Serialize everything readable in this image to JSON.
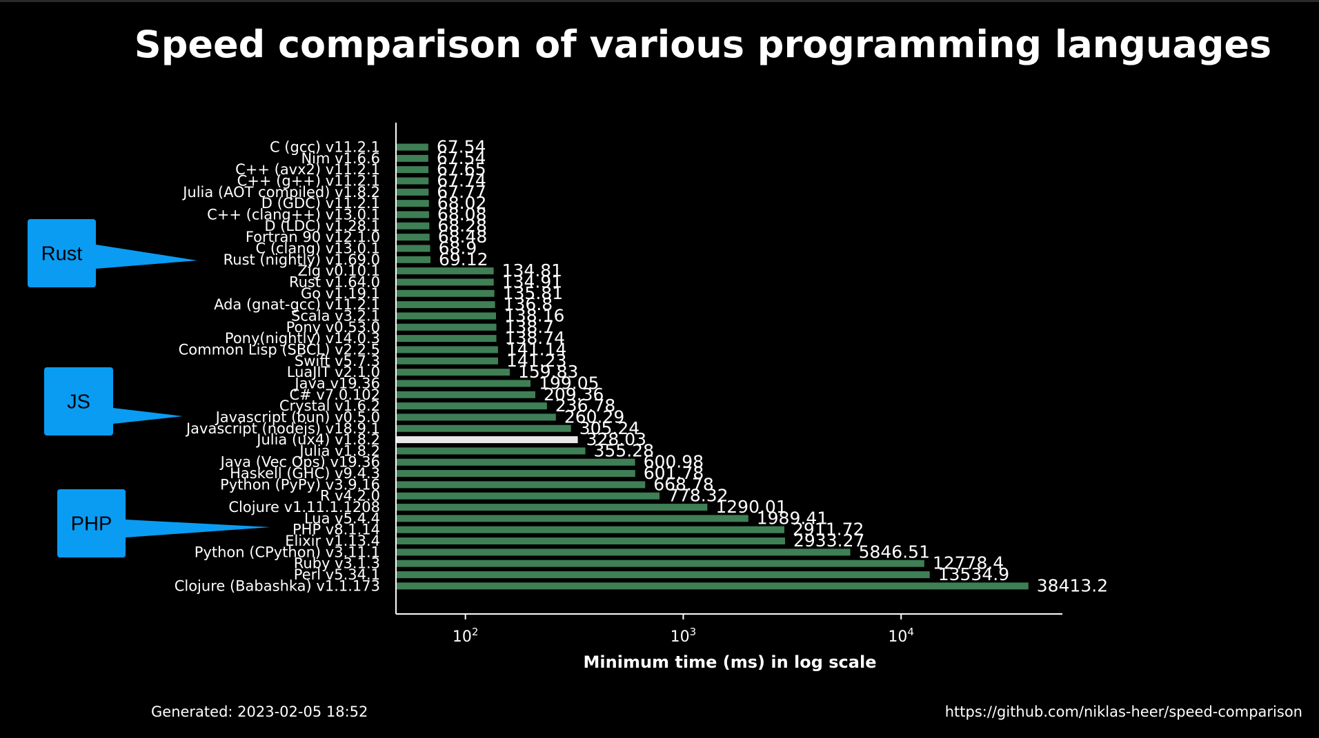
{
  "colors": {
    "background": "#000000",
    "bar": "#3f7f55",
    "highlight_bar": "#e8e8e8",
    "callout": "#0a9cf2",
    "text": "#ffffff"
  },
  "footer": {
    "generated": "Generated: 2023-02-05 18:52",
    "source": "https://github.com/niklas-heer/speed-comparison"
  },
  "callouts": [
    "Rust",
    "JS",
    "PHP"
  ],
  "chart_data": {
    "type": "bar",
    "orientation": "horizontal",
    "title": "Speed comparison of various programming languages",
    "xlabel": "Minimum time (ms) in log scale",
    "ylabel": "",
    "xscale": "log",
    "xlim": [
      48,
      55000
    ],
    "xticks": [
      {
        "value": 100,
        "base": "10",
        "exp": "2"
      },
      {
        "value": 1000,
        "base": "10",
        "exp": "3"
      },
      {
        "value": 10000,
        "base": "10",
        "exp": "4"
      }
    ],
    "grid": false,
    "highlighted_category": "Julia (ux4) v1.8.2",
    "categories": [
      "C (gcc) v11.2.1",
      "Nim v1.6.6",
      "C++ (avx2) v11.2.1",
      "C++ (g++) v11.2.1",
      "Julia (AOT compiled) v1.8.2",
      "D (GDC) v11.2.1",
      "C++ (clang++) v13.0.1",
      "D (LDC) v1.28.1",
      "Fortran 90 v12.1.0",
      "C (clang) v13.0.1",
      "Rust (nightly) v1.69.0",
      "Zig v0.10.1",
      "Rust v1.64.0",
      "Go v1.19.1",
      "Ada (gnat-gcc) v11.2.1",
      "Scala v3.2.1",
      "Pony v0.53.0",
      "Pony(nightly) v14.0.3",
      "Common Lisp (SBCL) v2.2.5",
      "Swift v5.7.3",
      "LuaJIT v2.1.0",
      "Java v19.36",
      "C# v7.0.102",
      "Crystal v1.6.2",
      "Javascript (bun) v0.5.0",
      "Javascript (nodejs) v18.9.1",
      "Julia (ux4) v1.8.2",
      "Julia v1.8.2",
      "Java (Vec Ops) v19.36",
      "Haskell (GHC) v9.4.3",
      "Python (PyPy) v3.9.16",
      "R v4.2.0",
      "Clojure v1.11.1.1208",
      "Lua v5.4.4",
      "PHP v8.1.14",
      "Elixir v1.13.4",
      "Python (CPython) v3.11.1",
      "Ruby v3.1.3",
      "Perl v5.34.1",
      "Clojure (Babashka) v1.1.173"
    ],
    "values": [
      67.54,
      67.54,
      67.65,
      67.74,
      67.77,
      68.02,
      68.08,
      68.28,
      68.48,
      68.9,
      69.12,
      134.81,
      134.91,
      135.81,
      136.8,
      138.16,
      138.7,
      138.74,
      141.14,
      141.23,
      159.83,
      199.05,
      209.36,
      236.78,
      260.29,
      305.24,
      328.03,
      355.28,
      600.98,
      601.78,
      668.78,
      778.32,
      1290.01,
      1989.41,
      2911.72,
      2933.27,
      5846.51,
      12778.4,
      13534.9,
      38413.2
    ],
    "value_labels": [
      "67.54",
      "67.54",
      "67.65",
      "67.74",
      "67.77",
      "68.02",
      "68.08",
      "68.28",
      "68.48",
      "68.9",
      "69.12",
      "134.81",
      "134.91",
      "135.81",
      "136.8",
      "138.16",
      "138.7",
      "138.74",
      "141.14",
      "141.23",
      "159.83",
      "199.05",
      "209.36",
      "236.78",
      "260.29",
      "305.24",
      "328.03",
      "355.28",
      "600.98",
      "601.78",
      "668.78",
      "778.32",
      "1290.01",
      "1989.41",
      "2911.72",
      "2933.27",
      "5846.51",
      "12778.4",
      "13534.9",
      "38413.2"
    ]
  }
}
